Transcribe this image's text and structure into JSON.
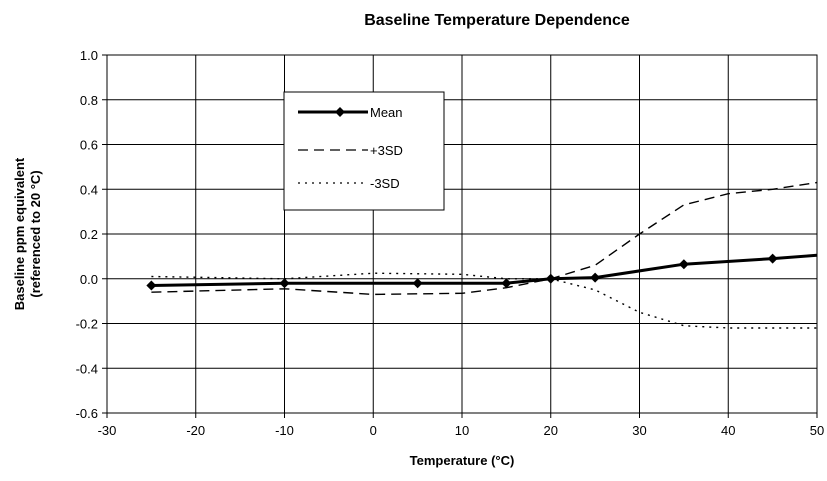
{
  "chart_data": {
    "type": "line",
    "title": "Baseline Temperature Dependence",
    "xlabel": "Temperature (°C)",
    "ylabel_lines": [
      "Baseline ppm equivalent",
      "(referenced to 20 °C)"
    ],
    "xlim": [
      -30,
      50
    ],
    "ylim": [
      -0.6,
      1.0
    ],
    "xticks": [
      -30,
      -20,
      -10,
      0,
      10,
      20,
      30,
      40,
      50
    ],
    "yticks": [
      -0.6,
      -0.4,
      -0.2,
      0.0,
      0.2,
      0.4,
      0.6,
      0.8,
      1.0
    ],
    "xtick_labels": [
      "-30",
      "-20",
      "-10",
      "0",
      "10",
      "20",
      "30",
      "40",
      "50"
    ],
    "ytick_labels": [
      "-0.6",
      "-0.4",
      "-0.2",
      "0.0",
      "0.2",
      "0.4",
      "0.6",
      "0.8",
      "1.0"
    ],
    "grid": true,
    "legend_position": "upper-left-inside",
    "series": [
      {
        "name": "Mean",
        "style": "solid-marker",
        "color": "#000000",
        "x": [
          -25,
          -10,
          5,
          15,
          20,
          25,
          35,
          45,
          50
        ],
        "y": [
          -0.03,
          -0.02,
          -0.02,
          -0.02,
          0.0,
          0.005,
          0.065,
          0.09,
          0.105
        ]
      },
      {
        "name": "+3SD",
        "style": "dashed",
        "color": "#000000",
        "x": [
          -25,
          -10,
          0,
          10,
          15,
          20,
          25,
          30,
          35,
          40,
          45,
          50
        ],
        "y": [
          -0.06,
          -0.045,
          -0.07,
          -0.065,
          -0.04,
          0.0,
          0.06,
          0.2,
          0.33,
          0.38,
          0.4,
          0.43
        ]
      },
      {
        "name": "-3SD",
        "style": "dotted",
        "color": "#000000",
        "x": [
          -25,
          -10,
          0,
          10,
          15,
          20,
          25,
          30,
          35,
          40,
          45,
          50
        ],
        "y": [
          0.01,
          0.0,
          0.025,
          0.02,
          0.0,
          0.0,
          -0.05,
          -0.15,
          -0.21,
          -0.22,
          -0.22,
          -0.22
        ]
      }
    ]
  }
}
